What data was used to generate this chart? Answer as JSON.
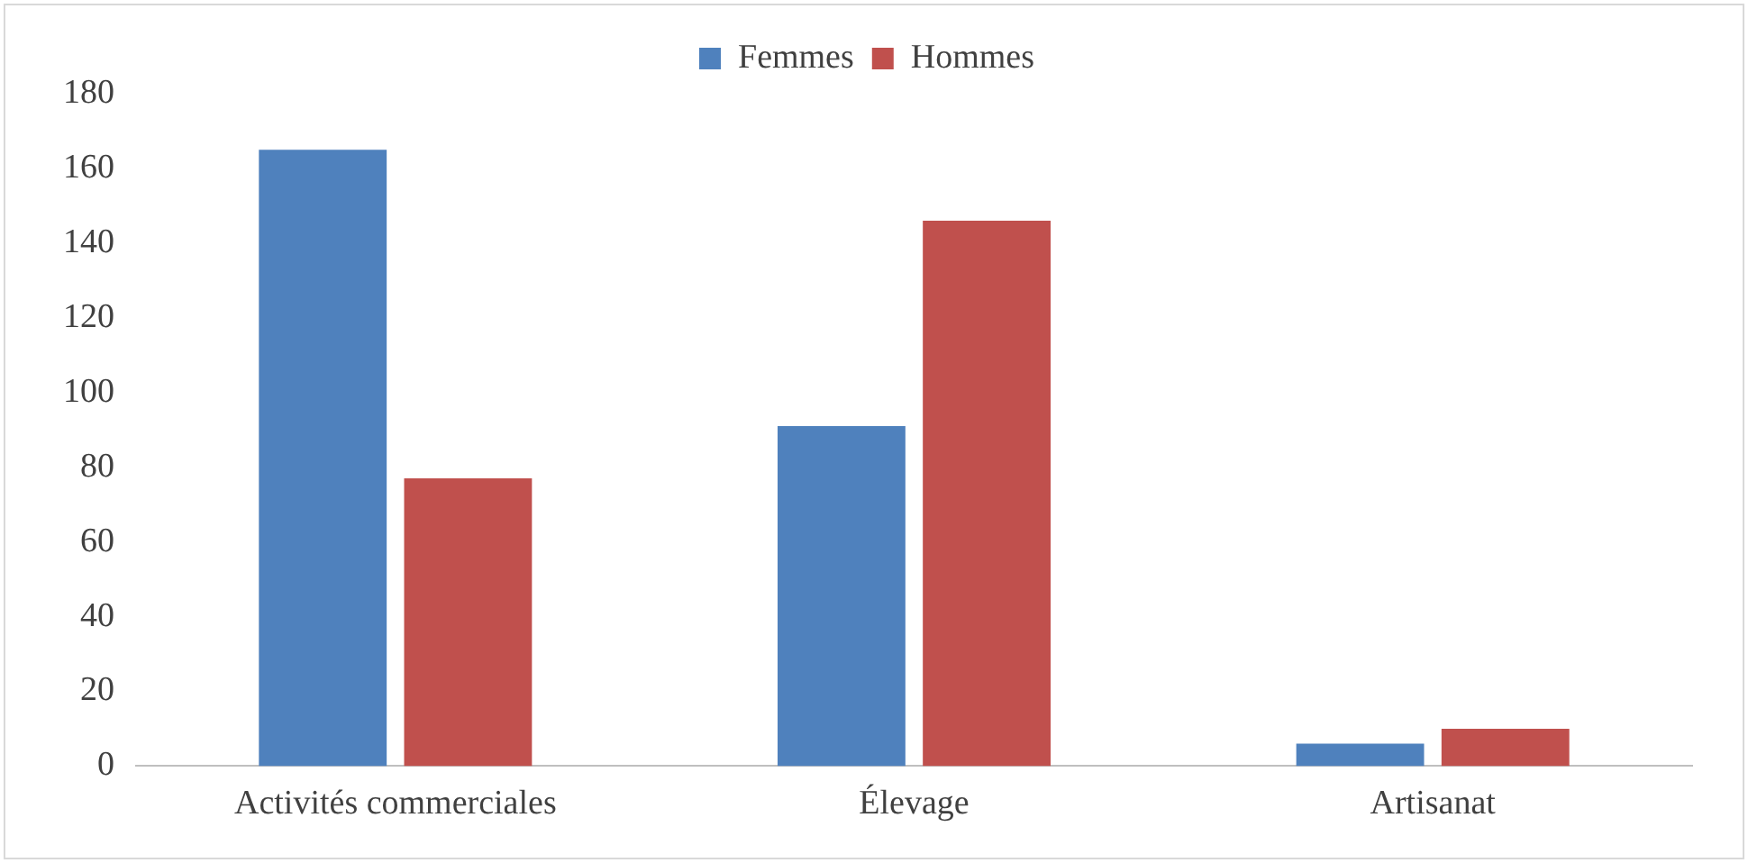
{
  "chart_data": {
    "type": "bar",
    "categories": [
      "Activités commerciales",
      "Élevage",
      "Artisanat"
    ],
    "series": [
      {
        "name": "Femmes",
        "color": "#4f81bd",
        "values": [
          165,
          91,
          6
        ]
      },
      {
        "name": "Hommes",
        "color": "#c0504d",
        "values": [
          77,
          146,
          10
        ]
      }
    ],
    "ylim": [
      0,
      180
    ],
    "yticks": [
      0,
      20,
      40,
      60,
      80,
      100,
      120,
      140,
      160,
      180
    ],
    "grid": false,
    "legend": "top"
  }
}
